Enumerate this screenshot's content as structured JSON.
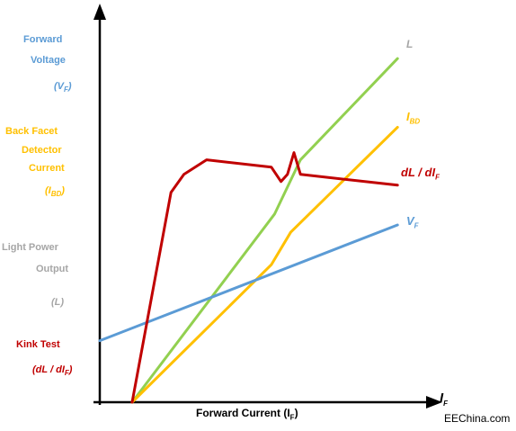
{
  "left_labels": {
    "vf": {
      "line1": "Forward",
      "line2": "Voltage",
      "sym": "(V",
      "sub": "F",
      "close": ")"
    },
    "ibd": {
      "line1": "Back Facet",
      "line2": "Detector",
      "line3": "Current",
      "sym": "(I",
      "sub": "BD",
      "close": ")"
    },
    "l": {
      "line1": "Light Power",
      "line2": "Output",
      "sym": "(L)"
    },
    "kink": {
      "line1": "Kink Test",
      "sym1": "(dL",
      "slash": "/",
      "sym2": "dI",
      "sub": "F",
      "close": ")"
    }
  },
  "curve_labels": {
    "l": "L",
    "ibd": "I",
    "ibd_sub": "BD",
    "kink_a": "dL",
    "kink_slash": "/",
    "kink_b": "dI",
    "kink_sub": "F",
    "vf": "V",
    "vf_sub": "F"
  },
  "x_axis": {
    "title": "Forward Current (I",
    "title_sub": "F",
    "title_close": ")",
    "end_label": "I",
    "end_sub": "F"
  },
  "watermark": "EEChina.com",
  "colors": {
    "vf": "#5b9bd5",
    "ibd": "#ffc000",
    "l": "#92d050",
    "kink": "#c00000",
    "axis": "#000000"
  },
  "chart_data": {
    "type": "line",
    "xlim": [
      0,
      10
    ],
    "ylim": [
      0,
      10
    ],
    "series": [
      {
        "name": "L",
        "x": [
          1,
          5.4,
          6.2,
          9.2
        ],
        "y": [
          0,
          5.2,
          6.7,
          9.5
        ]
      },
      {
        "name": "I BD",
        "x": [
          1,
          5.3,
          5.9,
          9.2
        ],
        "y": [
          0,
          3.8,
          4.7,
          7.6
        ]
      },
      {
        "name": "V F",
        "x": [
          0,
          9.2
        ],
        "y": [
          1.7,
          4.9
        ]
      },
      {
        "name": "dL / dI F",
        "x": [
          1,
          2.2,
          2.6,
          3.3,
          5.3,
          5.6,
          5.8,
          6.0,
          6.2,
          9.2
        ],
        "y": [
          0,
          5.8,
          6.3,
          6.7,
          6.5,
          6.1,
          6.3,
          6.9,
          6.3,
          6.0
        ]
      }
    ]
  }
}
